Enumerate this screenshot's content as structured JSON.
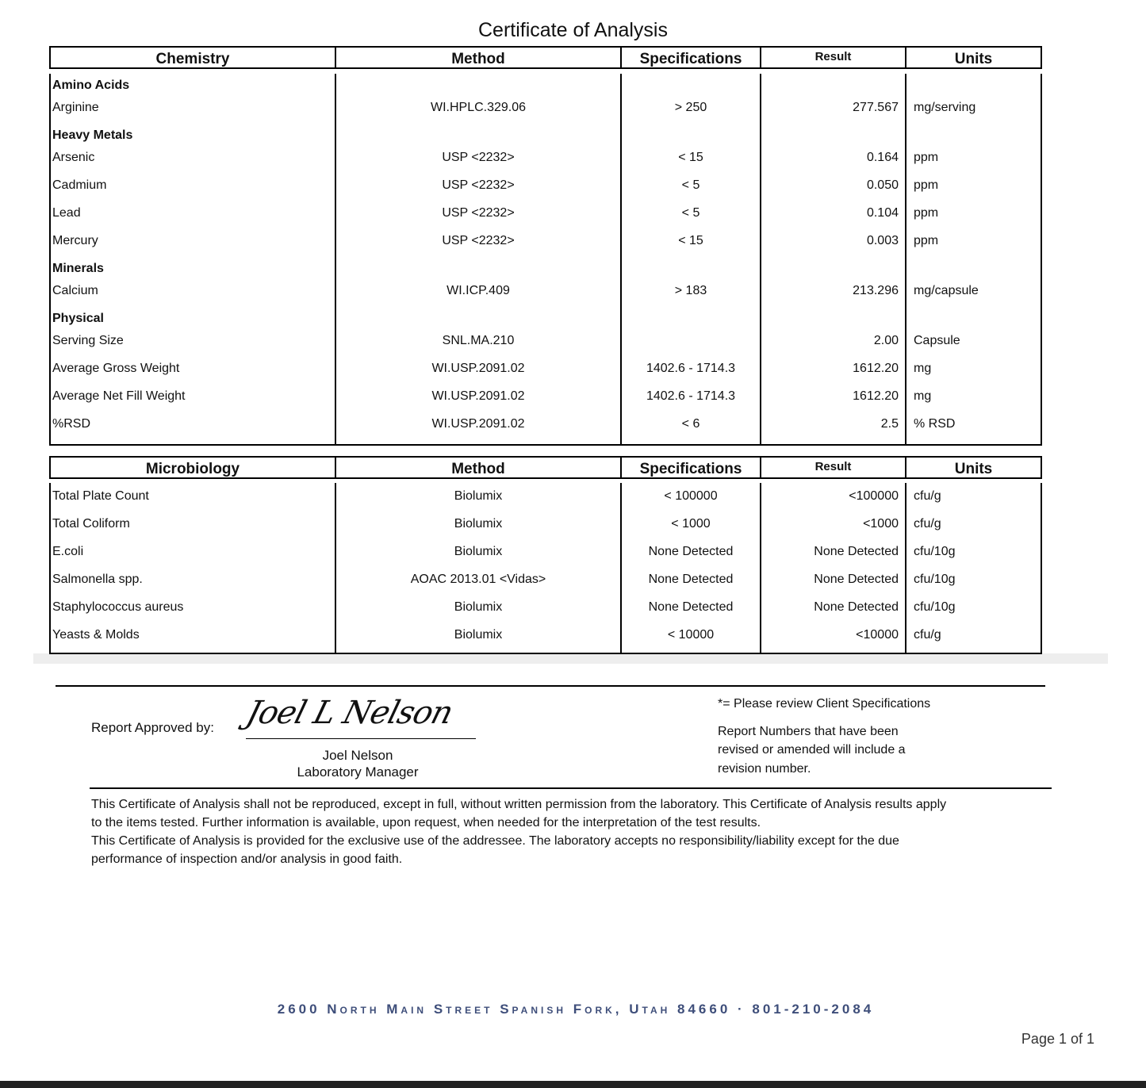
{
  "title": "Certificate of Analysis",
  "chemistry": {
    "header": [
      "Chemistry",
      "Method",
      "Specifications",
      "Result",
      "Units"
    ],
    "rows": [
      [
        "Amino Acids"
      ],
      [
        "Arginine",
        "WI.HPLC.329.06",
        "> 250",
        "277.567",
        "mg/serving"
      ],
      [
        "Heavy Metals"
      ],
      [
        "Arsenic",
        "USP <2232>",
        "< 15",
        "0.164",
        "ppm"
      ],
      [
        "Cadmium",
        "USP <2232>",
        "< 5",
        "0.050",
        "ppm"
      ],
      [
        "Lead",
        "USP <2232>",
        "< 5",
        "0.104",
        "ppm"
      ],
      [
        "Mercury",
        "USP <2232>",
        "< 15",
        "0.003",
        "ppm"
      ],
      [
        "Minerals"
      ],
      [
        "Calcium",
        "WI.ICP.409",
        "> 183",
        "213.296",
        "mg/capsule"
      ],
      [
        "Physical"
      ],
      [
        "Serving Size",
        "SNL.MA.210",
        null,
        "2.00",
        "Capsule"
      ],
      [
        "Average Gross Weight",
        "WI.USP.2091.02",
        "1402.6 - 1714.3",
        "1612.20",
        "mg"
      ],
      [
        "Average Net Fill Weight",
        "WI.USP.2091.02",
        "1402.6 - 1714.3",
        "1612.20",
        "mg"
      ],
      [
        "%RSD",
        "WI.USP.2091.02",
        "< 6",
        "2.5",
        "% RSD"
      ]
    ]
  },
  "microbiology": {
    "header": [
      "Microbiology",
      "Method",
      "Specifications",
      "Result",
      "Units"
    ],
    "rows": [
      [
        "Total Plate Count",
        "Biolumix",
        "< 100000",
        "<100000",
        "cfu/g"
      ],
      [
        "Total Coliform",
        "Biolumix",
        "< 1000",
        "<1000",
        "cfu/g"
      ],
      [
        "E.coli",
        "Biolumix",
        "None Detected",
        "None Detected",
        "cfu/10g"
      ],
      [
        "Salmonella spp.",
        "AOAC 2013.01 <Vidas>",
        "None Detected",
        "None Detected",
        "cfu/10g"
      ],
      [
        "Staphylococcus aureus",
        "Biolumix",
        "None Detected",
        "None Detected",
        "cfu/10g"
      ],
      [
        "Yeasts & Molds",
        "Biolumix",
        "< 10000",
        "<10000",
        "cfu/g"
      ]
    ]
  },
  "approval": {
    "label": "Report Approved by:",
    "signature": "Joel L Nelson",
    "name": "Joel Nelson",
    "role": "Laboratory Manager"
  },
  "notes": [
    "*= Please review Client Specifications",
    "Report Numbers that have been",
    "revised or amended will include a",
    "revision number."
  ],
  "disclaimer": [
    "This Certificate of Analysis shall not be reproduced, except in full, without written permission from the laboratory. This Certificate of Analysis results apply",
    "to the items tested. Further information is available, upon request, when needed for the interpretation of the test results.",
    "This Certificate of Analysis is provided for the exclusive use of the addressee. The laboratory accepts no responsibility/liability except for the due",
    "performance of inspection and/or analysis in good faith."
  ],
  "address": "2600 North Main Street Spanish Fork, Utah 84660 · 801-210-2084",
  "page": "Page 1 of 1"
}
